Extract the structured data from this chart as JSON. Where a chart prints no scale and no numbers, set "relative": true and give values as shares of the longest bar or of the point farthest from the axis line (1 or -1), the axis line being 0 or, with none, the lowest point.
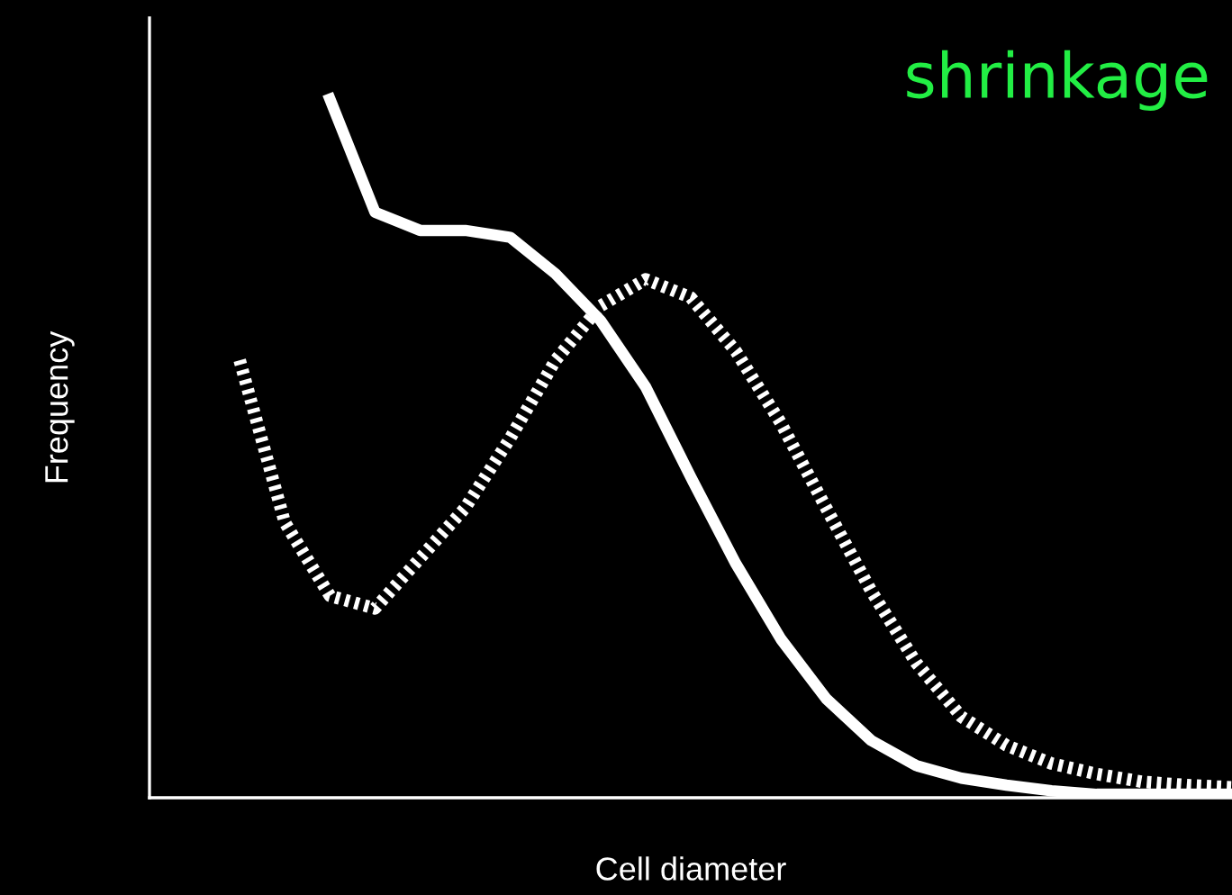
{
  "chart_data": {
    "type": "line",
    "relative": true,
    "xlabel": "Cell diameter",
    "ylabel": "Frequency",
    "annotations": [
      "shrinkage"
    ],
    "categories": [
      null,
      null,
      null,
      null,
      null,
      null,
      null,
      null,
      null,
      null,
      null,
      null,
      null,
      null,
      null,
      null,
      null,
      null,
      null,
      null,
      null,
      null,
      null,
      null,
      null
    ],
    "series": [
      {
        "color": "#ffffff",
        "line_style": "solid",
        "values": [
          null,
          null,
          null,
          null,
          1,
          0.838,
          0.812,
          0.812,
          0.802,
          0.75,
          0.683,
          0.588,
          0.459,
          0.335,
          0.227,
          0.142,
          0.082,
          0.046,
          0.028,
          0.018,
          0.01,
          0.005,
          0.005,
          0.005,
          0.005
        ]
      },
      {
        "color": "#ffffff",
        "line_style": "dotted",
        "values": [
          null,
          null,
          0.626,
          0.394,
          0.289,
          0.271,
          0.343,
          0.415,
          0.515,
          0.626,
          0.704,
          0.742,
          0.716,
          0.639,
          0.536,
          0.415,
          0.296,
          0.193,
          0.116,
          0.075,
          0.049,
          0.034,
          0.023,
          0.018,
          0.015
        ]
      }
    ],
    "legend": false,
    "marker": "none"
  }
}
